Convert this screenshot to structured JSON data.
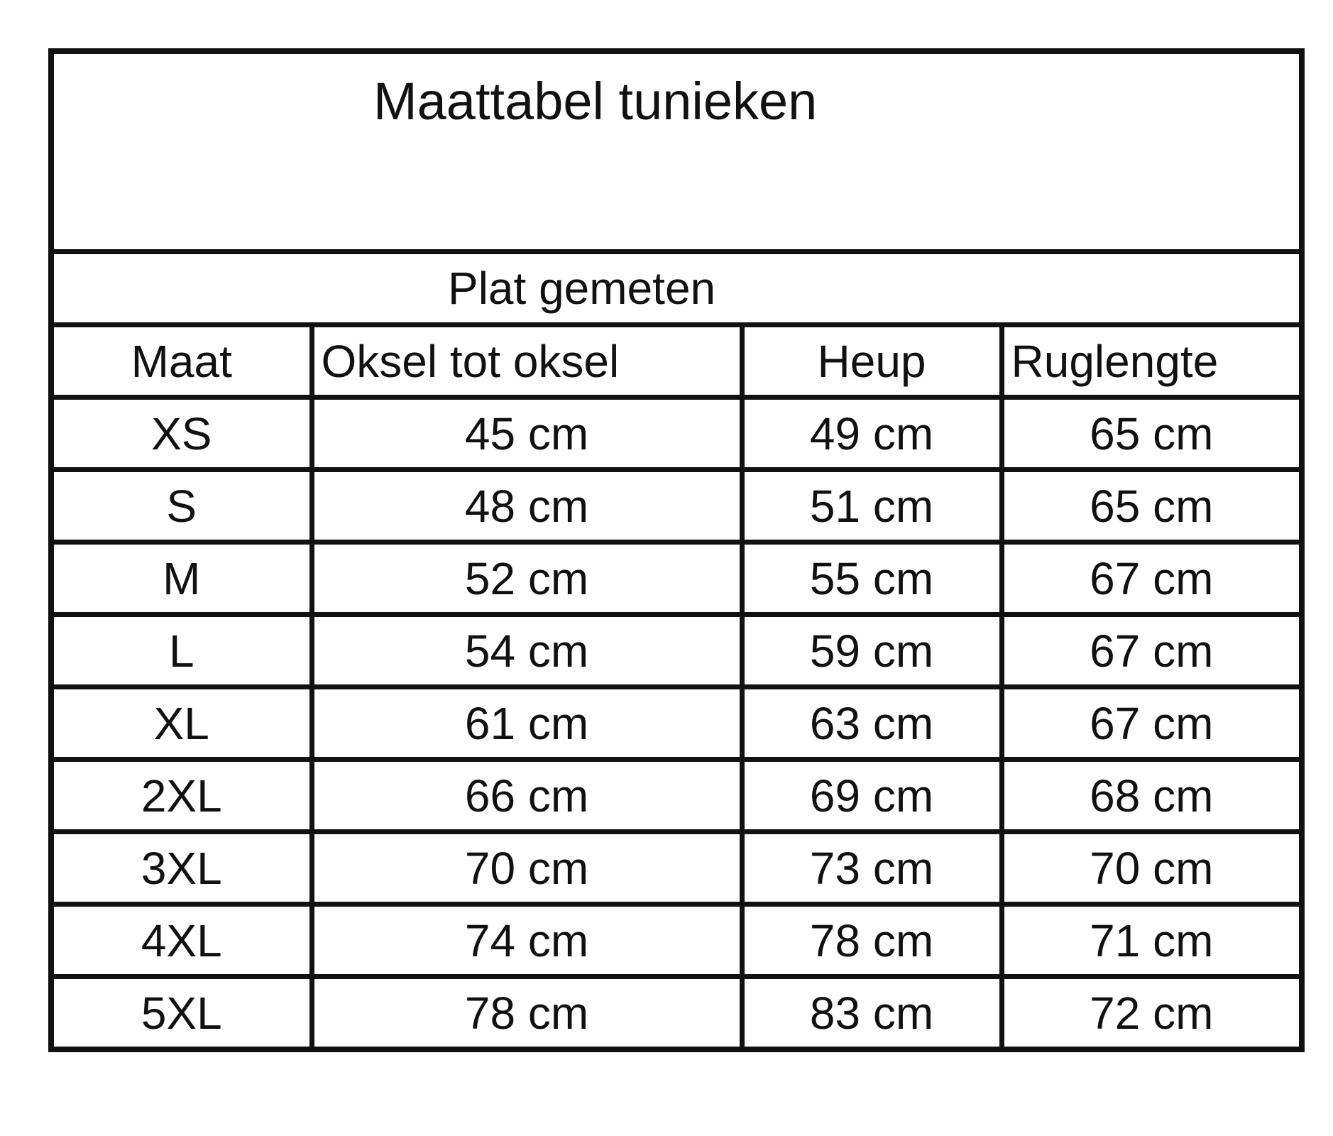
{
  "title": "Maattabel tunieken",
  "subtitle": "Plat gemeten",
  "columns": [
    "Maat",
    "Oksel tot oksel",
    "Heup",
    "Ruglengte"
  ],
  "rows": [
    [
      "XS",
      "45 cm",
      "49 cm",
      "65 cm"
    ],
    [
      "S",
      "48 cm",
      "51 cm",
      "65 cm"
    ],
    [
      "M",
      "52 cm",
      "55 cm",
      "67 cm"
    ],
    [
      "L",
      "54 cm",
      "59 cm",
      "67 cm"
    ],
    [
      "XL",
      "61 cm",
      "63 cm",
      "67 cm"
    ],
    [
      "2XL",
      "66 cm",
      "69 cm",
      "68 cm"
    ],
    [
      "3XL",
      "70 cm",
      "73 cm",
      "70 cm"
    ],
    [
      "4XL",
      "74 cm",
      "78 cm",
      "71 cm"
    ],
    [
      "5XL",
      "78 cm",
      "83 cm",
      "72 cm"
    ]
  ]
}
